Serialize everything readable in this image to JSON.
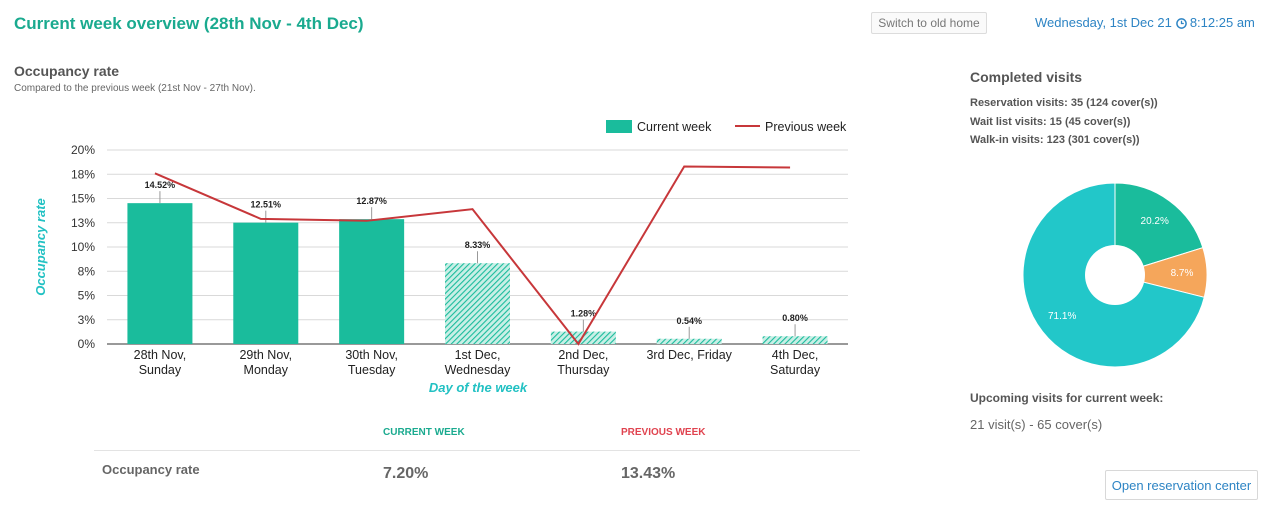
{
  "header": {
    "title": "Current week overview (28th Nov - 4th Dec)",
    "old_home_label": "Switch to old home",
    "date": "Wednesday,  1st Dec 21",
    "time": "8:12:25 am"
  },
  "occupancy": {
    "title": "Occupancy rate",
    "subtitle": "Compared to the previous week (21st Nov - 27th Nov)."
  },
  "chart_data": [
    {
      "type": "bar",
      "ylabel": "Occupancy rate",
      "xlabel": "Day of the week",
      "ylim": [
        0,
        20
      ],
      "y_ticks": [
        "0%",
        "3%",
        "5%",
        "8%",
        "10%",
        "13%",
        "15%",
        "18%",
        "20%"
      ],
      "categories": [
        [
          "28th Nov,",
          "Sunday"
        ],
        [
          "29th Nov,",
          "Monday"
        ],
        [
          "30th Nov,",
          "Tuesday"
        ],
        [
          "1st Dec,",
          "Wednesday"
        ],
        [
          "2nd Dec,",
          "Thursday"
        ],
        [
          "3rd Dec, Friday"
        ],
        [
          "4th Dec,",
          "Saturday"
        ]
      ],
      "legend_position": "top-right",
      "series": [
        {
          "name": "Current week",
          "type": "bar",
          "color": "#1abc9c",
          "values": [
            14.52,
            12.51,
            12.87,
            8.33,
            1.28,
            0.54,
            0.8
          ],
          "labels": [
            "14.52%",
            "12.51%",
            "12.87%",
            "8.33%",
            "1.28%",
            "0.54%",
            "0.80%"
          ],
          "hatched_from_index": 3
        },
        {
          "name": "Previous week",
          "type": "line",
          "color": "#c7373a",
          "values": [
            17.6,
            12.9,
            12.7,
            13.9,
            0,
            18.3,
            18.2
          ]
        }
      ]
    },
    {
      "type": "pie",
      "slices": [
        {
          "label": "20.2%",
          "value": 20.2,
          "color": "#1abc9c"
        },
        {
          "label": "8.7%",
          "value": 8.7,
          "color": "#f5a65b"
        },
        {
          "label": "71.1%",
          "value": 71.1,
          "color": "#22c7c9"
        }
      ],
      "donut": true
    }
  ],
  "stats": {
    "current_head": "CURRENT WEEK",
    "previous_head": "PREVIOUS WEEK",
    "row_label": "Occupancy rate",
    "current_value": "7.20%",
    "previous_value": "13.43%"
  },
  "visits": {
    "title": "Completed visits",
    "reservation": "Reservation visits: 35 (124 cover(s))",
    "waitlist": "Wait list visits: 15 (45 cover(s))",
    "walkin": "Walk-in visits: 123 (301 cover(s))",
    "upcoming_title": "Upcoming visits for current week:",
    "upcoming_value": "21 visit(s) - 65 cover(s)",
    "open_center_label": "Open reservation center"
  },
  "colors": {
    "accent": "#1aaa8f",
    "link": "#2d84c4",
    "previous": "#e0434f"
  }
}
